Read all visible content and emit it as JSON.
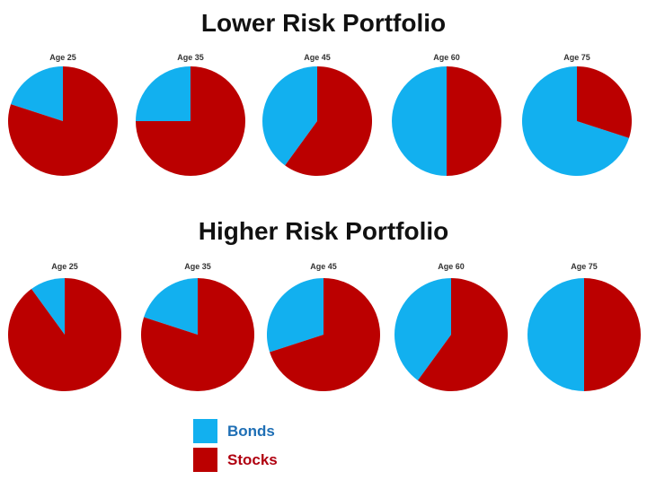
{
  "colors": {
    "bonds": "#12B0EF",
    "stocks": "#BB0000",
    "bonds_text": "#1F6FB5",
    "stocks_text": "#B00010"
  },
  "legend": {
    "bonds_label": "Bonds",
    "stocks_label": "Stocks"
  },
  "chart_data": [
    {
      "type": "pie",
      "title": "Lower Risk Portfolio",
      "categories": [
        "Age 25",
        "Age 35",
        "Age 45",
        "Age 60",
        "Age 75"
      ],
      "series": [
        {
          "name": "Bonds",
          "values": [
            20,
            25,
            40,
            50,
            70
          ]
        },
        {
          "name": "Stocks",
          "values": [
            80,
            75,
            60,
            50,
            30
          ]
        }
      ],
      "legend_position": "bottom"
    },
    {
      "type": "pie",
      "title": "Higher Risk Portfolio",
      "categories": [
        "Age 25",
        "Age 35",
        "Age 45",
        "Age 60",
        "Age 75"
      ],
      "series": [
        {
          "name": "Bonds",
          "values": [
            10,
            20,
            30,
            40,
            50
          ]
        },
        {
          "name": "Stocks",
          "values": [
            90,
            80,
            70,
            60,
            50
          ]
        }
      ],
      "legend_position": "bottom"
    }
  ]
}
